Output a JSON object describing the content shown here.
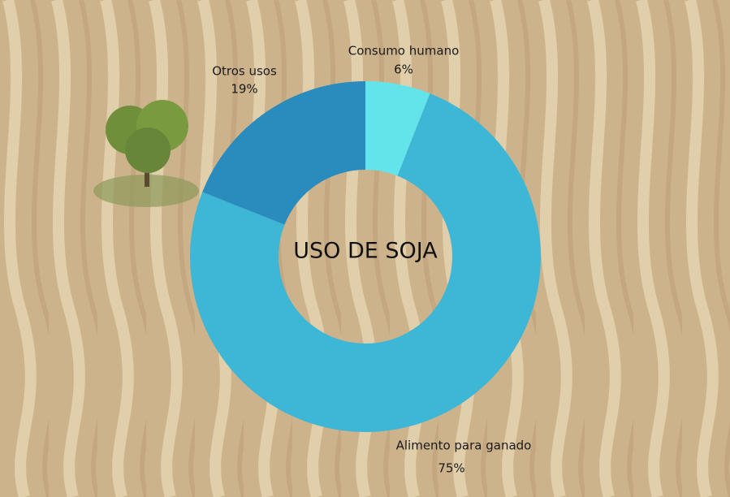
{
  "chart_data": {
    "type": "donut",
    "title": "USO DE SOJA",
    "categories": [
      "Consumo humano",
      "Alimento para ganado",
      "Otros usos"
    ],
    "values": [
      6,
      75,
      19
    ],
    "value_labels": [
      "6%",
      "75%",
      "19%"
    ],
    "colors": [
      "#63e3ea",
      "#3eb6d6",
      "#2a8bbd"
    ]
  }
}
